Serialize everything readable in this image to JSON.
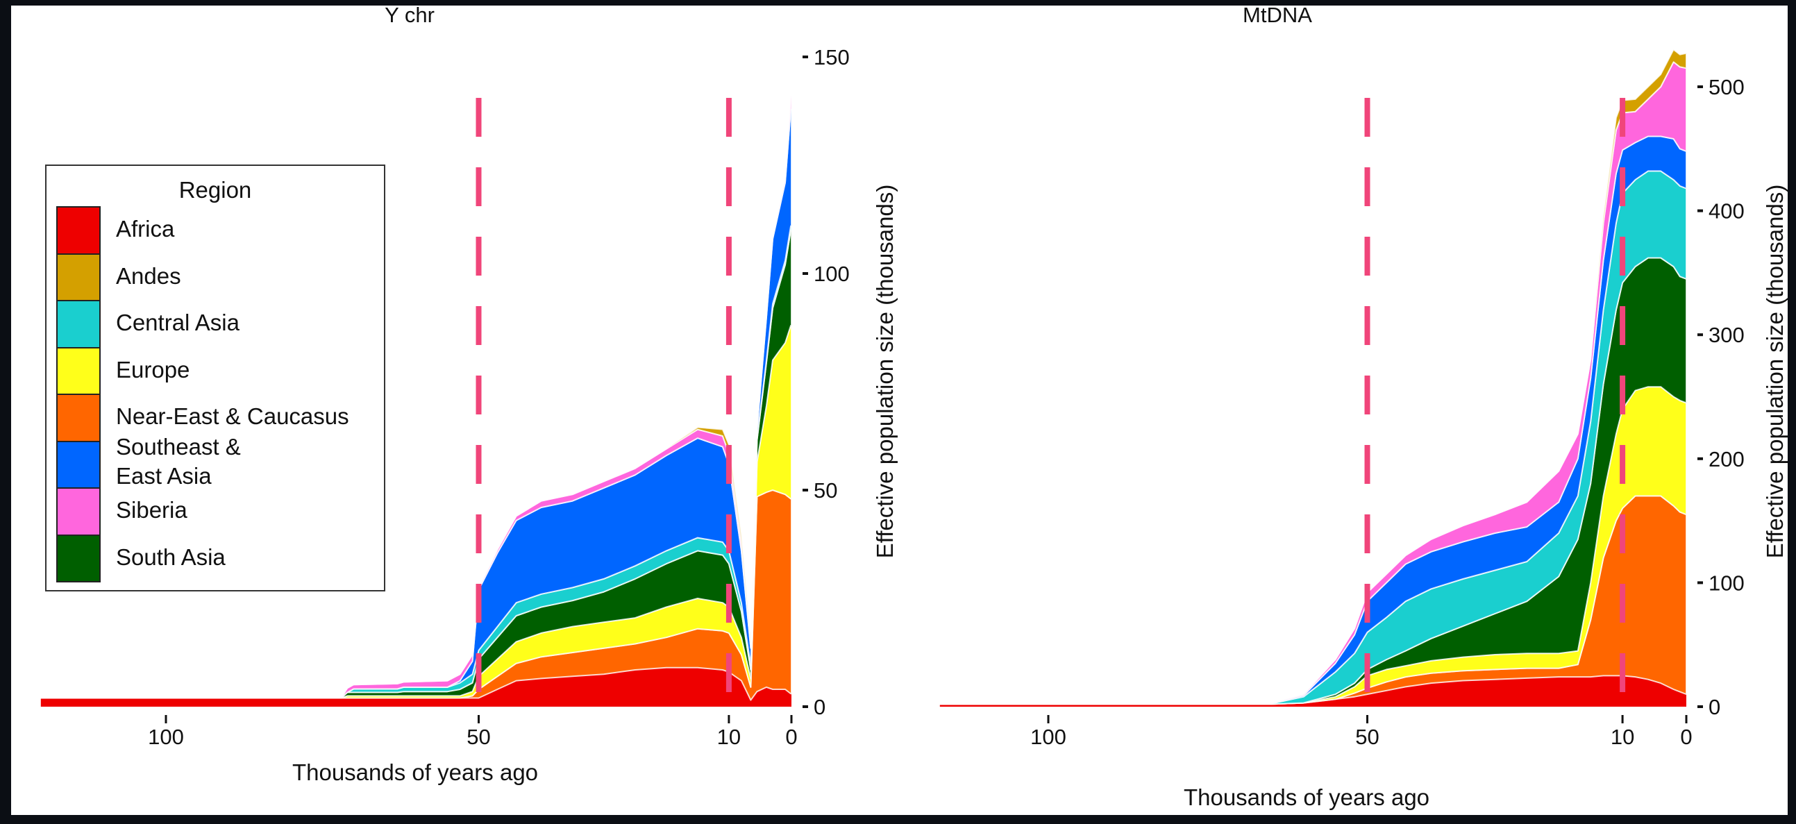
{
  "chart_data": [
    {
      "type": "area",
      "stacked": true,
      "title": "Y chr",
      "xlabel": "Thousands of years ago",
      "ylabel": "Effective population size (thousands)",
      "xlim": [
        120,
        0
      ],
      "ylim": [
        0,
        150
      ],
      "x_ticks": [
        100,
        50,
        10,
        0
      ],
      "y_ticks": [
        0,
        50,
        100,
        150
      ],
      "vlines": [
        50,
        10
      ],
      "x": [
        120,
        72,
        71,
        70,
        63,
        62,
        55,
        53,
        51,
        50,
        47,
        44,
        40,
        35,
        30,
        25,
        20,
        15,
        11,
        10,
        8,
        6.5,
        5.5,
        4,
        3,
        1,
        0.1,
        0
      ],
      "series": [
        {
          "name": "Africa",
          "values": [
            2,
            2,
            2,
            2,
            2,
            2,
            2,
            2,
            2,
            2,
            4,
            6,
            6.5,
            7,
            7.5,
            8.5,
            9,
            9,
            8.5,
            8,
            6,
            1.5,
            3.5,
            4.5,
            4,
            4,
            3,
            3
          ]
        },
        {
          "name": "Near-East & Caucasus",
          "values": [
            0,
            0,
            0,
            0,
            0,
            0,
            0,
            0,
            0.5,
            2,
            3,
            4,
            5,
            5.5,
            6,
            6,
            7,
            9,
            9,
            9,
            6,
            3,
            45,
            45,
            46,
            45,
            45,
            45
          ]
        },
        {
          "name": "Europe",
          "values": [
            0,
            0,
            0.5,
            0.5,
            0.5,
            0.5,
            0.5,
            0.5,
            1,
            3,
            4,
            5,
            5.5,
            6,
            6,
            6,
            7,
            7,
            6.5,
            6,
            4,
            2,
            8,
            20,
            30,
            35,
            40,
            40
          ]
        },
        {
          "name": "South Asia",
          "values": [
            0,
            0,
            0.8,
            0.8,
            0.8,
            1,
            1,
            1.5,
            2,
            4,
            5,
            6,
            6,
            6,
            7,
            9,
            10,
            11,
            11,
            10,
            6,
            2,
            5,
            10,
            12,
            18,
            22,
            22
          ]
        },
        {
          "name": "Central Asia",
          "values": [
            0,
            0,
            0,
            0.8,
            0.8,
            1,
            1,
            1.5,
            2,
            2,
            2.5,
            3,
            3,
            3,
            3,
            3,
            3,
            3,
            3,
            3,
            2,
            1,
            0.5,
            0.5,
            1,
            1,
            1,
            1
          ]
        },
        {
          "name": "Southeast & East Asia",
          "values": [
            0,
            0,
            0,
            0,
            0,
            0,
            0,
            0.5,
            3,
            14,
            17,
            19,
            20,
            20,
            21,
            21,
            22,
            23,
            22,
            20,
            12,
            4,
            2,
            10,
            15,
            18,
            27,
            27
          ]
        },
        {
          "name": "Siberia",
          "values": [
            0,
            0,
            1,
            1,
            1.2,
            1.2,
            1.5,
            1.5,
            1.5,
            0.5,
            0.8,
            1,
            1.5,
            1.5,
            1.5,
            1.5,
            1.5,
            2,
            2.5,
            2.5,
            2,
            1,
            0.5,
            0.5,
            0.5,
            1,
            3,
            3
          ]
        },
        {
          "name": "Andes",
          "values": [
            0,
            0,
            0,
            0,
            0,
            0,
            0,
            0,
            0,
            0,
            0,
            0,
            0,
            0,
            0,
            0,
            0,
            0.5,
            1.5,
            2,
            1.5,
            0.5,
            0,
            0,
            0,
            0,
            0,
            0
          ]
        }
      ]
    },
    {
      "type": "area",
      "stacked": true,
      "title": "MtDNA",
      "xlabel": "Thousands of years ago",
      "ylabel": "Effective population size (thousands)",
      "xlim": [
        117,
        0
      ],
      "ylim": [
        0,
        530
      ],
      "x_ticks": [
        100,
        50,
        10,
        0
      ],
      "y_ticks": [
        0,
        100,
        200,
        300,
        400,
        500
      ],
      "vlines": [
        50,
        10
      ],
      "x": [
        117,
        70,
        65,
        60,
        55,
        52,
        50,
        47,
        44,
        40,
        35,
        30,
        25,
        20,
        17,
        15,
        13,
        11,
        10,
        8,
        6,
        4,
        2,
        1,
        0
      ],
      "series": [
        {
          "name": "Africa",
          "values": [
            2,
            2,
            2,
            3,
            6,
            8,
            10,
            13,
            16,
            19,
            21,
            22,
            23,
            24,
            24,
            24,
            25,
            25,
            25,
            24,
            22,
            19,
            14,
            12,
            10
          ]
        },
        {
          "name": "Near-East & Caucasus",
          "values": [
            0,
            0,
            0,
            0,
            0,
            3,
            5,
            7,
            8,
            8,
            8,
            8,
            8,
            7,
            10,
            46,
            95,
            125,
            135,
            146,
            148,
            151,
            148,
            145,
            145
          ]
        },
        {
          "name": "Europe",
          "values": [
            0,
            0,
            0,
            0,
            2,
            5,
            10,
            10,
            9,
            10,
            11,
            12,
            12,
            12,
            11,
            30,
            50,
            70,
            80,
            85,
            88,
            88,
            88,
            90,
            90
          ]
        },
        {
          "name": "South Asia",
          "values": [
            0,
            0,
            0,
            0,
            2,
            3,
            5,
            8,
            12,
            18,
            25,
            33,
            42,
            62,
            90,
            80,
            90,
            100,
            102,
            100,
            104,
            104,
            105,
            100,
            100
          ]
        },
        {
          "name": "Central Asia",
          "values": [
            0,
            0,
            0.5,
            5,
            18,
            24,
            30,
            34,
            40,
            40,
            38,
            35,
            32,
            35,
            35,
            50,
            60,
            70,
            72,
            70,
            70,
            70,
            70,
            73,
            73
          ]
        },
        {
          "name": "Southeast & East Asia",
          "values": [
            0,
            0,
            0.3,
            1,
            7,
            15,
            25,
            28,
            30,
            30,
            30,
            30,
            28,
            25,
            30,
            35,
            40,
            40,
            35,
            30,
            28,
            28,
            33,
            30,
            30
          ]
        },
        {
          "name": "Siberia",
          "values": [
            0,
            0,
            0.2,
            1,
            3,
            5,
            7,
            7,
            7,
            10,
            13,
            15,
            20,
            25,
            20,
            15,
            30,
            35,
            30,
            25,
            30,
            40,
            62,
            66,
            67
          ]
        },
        {
          "name": "Andes",
          "values": [
            0,
            0,
            0,
            0,
            0,
            0,
            0,
            0,
            0,
            0,
            0,
            0,
            0,
            0,
            0,
            0,
            5,
            10,
            10,
            10,
            10,
            10,
            10,
            10,
            12
          ]
        }
      ]
    }
  ],
  "legend": {
    "title": "Region",
    "items": [
      {
        "label": "Africa",
        "color": "#EE0000"
      },
      {
        "label": "Andes",
        "color": "#D4A000"
      },
      {
        "label": "Central Asia",
        "color": "#1ACFCF"
      },
      {
        "label": "Europe",
        "color": "#FFFF1A"
      },
      {
        "label": "Near-East & Caucasus",
        "color": "#FF6600"
      },
      {
        "label": "Southeast &",
        "label2": "East Asia",
        "color": "#0066FF"
      },
      {
        "label": "Siberia",
        "color": "#FF66DD"
      },
      {
        "label": "South Asia",
        "color": "#005F00"
      }
    ]
  },
  "colors": {
    "Africa": "#EE0000",
    "Andes": "#D4A000",
    "Central Asia": "#1ACFCF",
    "Europe": "#FFFF1A",
    "Near-East & Caucasus": "#FF6600",
    "Southeast & East Asia": "#0066FF",
    "Siberia": "#FF66DD",
    "South Asia": "#005F00",
    "vline": "#F0457A"
  }
}
